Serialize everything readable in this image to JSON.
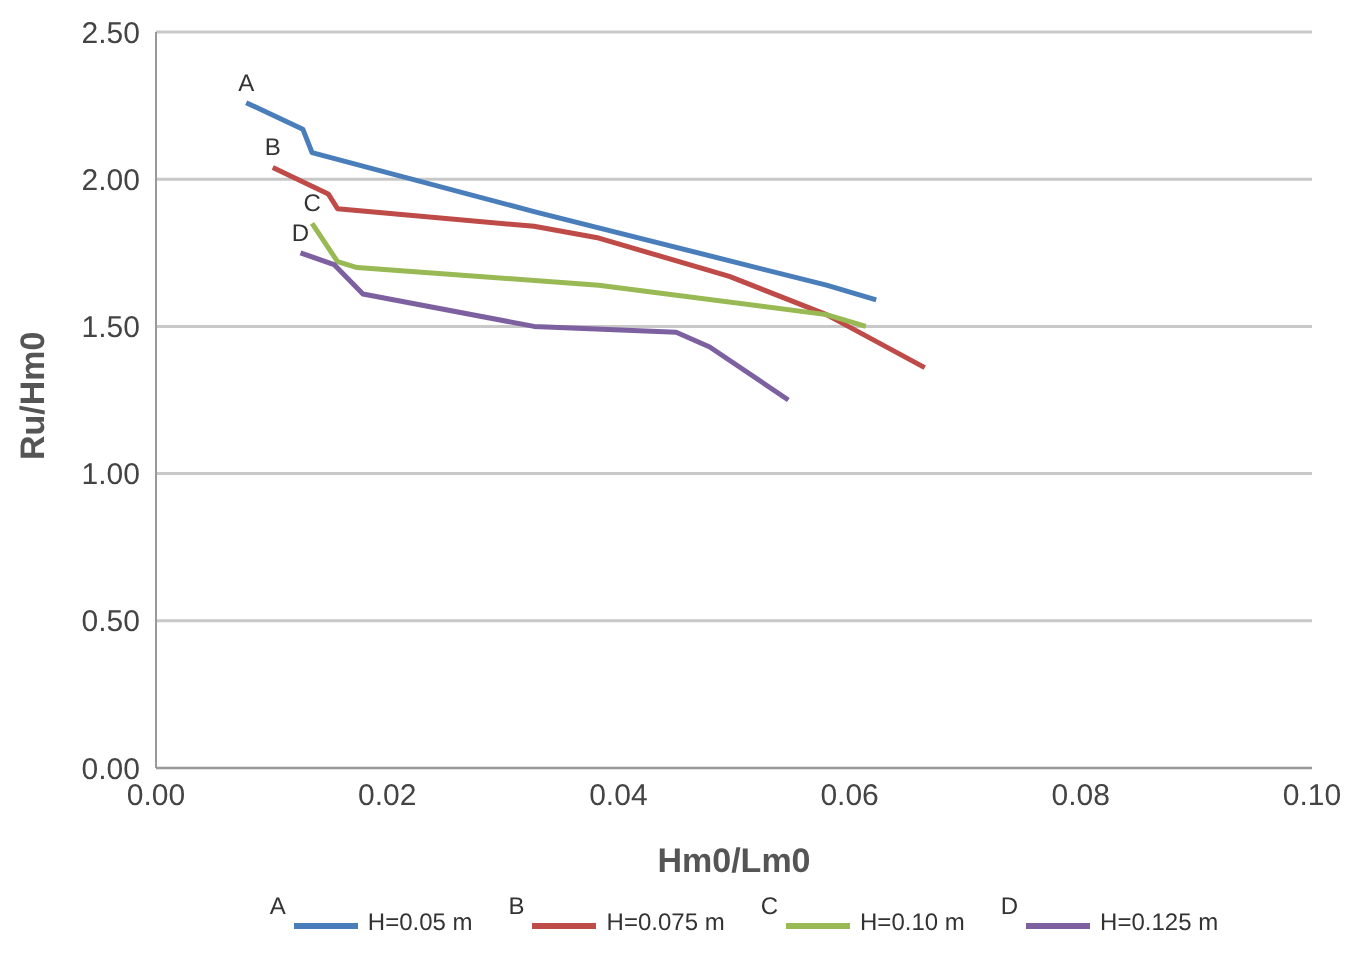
{
  "chart_data": {
    "type": "line",
    "xlabel": "Hm0/Lm0",
    "ylabel": "Ru/Hm0",
    "xlim": [
      0,
      0.1
    ],
    "xticks": [
      {
        "value": 0,
        "label": "0.00"
      },
      {
        "value": 0.02,
        "label": "0.02"
      },
      {
        "value": 0.04,
        "label": "0.04"
      },
      {
        "value": 0.06,
        "label": "0.06"
      },
      {
        "value": 0.08,
        "label": "0.08"
      },
      {
        "value": 0.1,
        "label": "0.10"
      }
    ],
    "ylim": [
      0,
      2.5
    ],
    "yticks": [
      {
        "value": 0,
        "label": "0.00"
      },
      {
        "value": 0.5,
        "label": "0.50"
      },
      {
        "value": 1,
        "label": "1.00"
      },
      {
        "value": 1.5,
        "label": "1.50"
      },
      {
        "value": 2,
        "label": "2.00"
      },
      {
        "value": 2.5,
        "label": "2.50"
      }
    ],
    "grid": "y",
    "legend": "bottom",
    "marker": "none",
    "line_style": "solid",
    "series": [
      {
        "name": "H=0.05 m",
        "color": "#4a7ebb",
        "x": [
          0.0078,
          0.0127,
          0.0135,
          0.0327,
          0.058,
          0.0623
        ],
        "values": [
          2.26,
          2.17,
          2.09,
          1.89,
          1.64,
          1.59
        ]
      },
      {
        "name": "H=0.075 m",
        "color": "#be4b48",
        "x": [
          0.0101,
          0.0149,
          0.0157,
          0.0327,
          0.0383,
          0.0496,
          0.058,
          0.0665
        ],
        "values": [
          2.04,
          1.95,
          1.9,
          1.84,
          1.8,
          1.67,
          1.54,
          1.36
        ]
      },
      {
        "name": "H=0.10 m",
        "color": "#98b954",
        "x": [
          0.0135,
          0.0157,
          0.0174,
          0.0383,
          0.058,
          0.0614
        ],
        "values": [
          1.85,
          1.72,
          1.7,
          1.64,
          1.54,
          1.5
        ]
      },
      {
        "name": "H=0.125 m",
        "color": "#7d60a0",
        "x": [
          0.0125,
          0.0154,
          0.0179,
          0.0327,
          0.045,
          0.0479,
          0.0547
        ],
        "values": [
          1.75,
          1.71,
          1.61,
          1.5,
          1.48,
          1.43,
          1.25
        ]
      }
    ],
    "annotations": [
      {
        "text": "A",
        "x": 0.0078,
        "y": 2.26
      },
      {
        "text": "B",
        "x": 0.0101,
        "y": 2.04
      },
      {
        "text": "C",
        "x": 0.0135,
        "y": 1.85
      },
      {
        "text": "D",
        "x": 0.0125,
        "y": 1.75
      }
    ]
  }
}
